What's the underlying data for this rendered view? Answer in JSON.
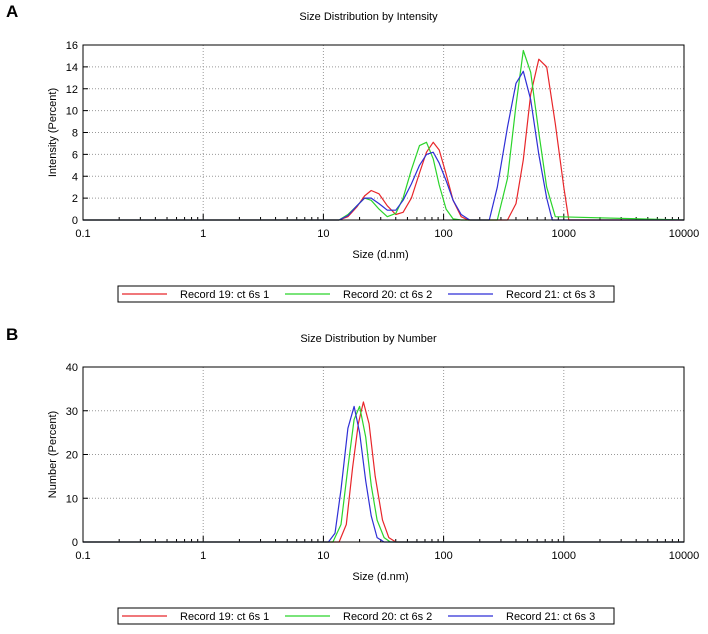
{
  "panels": [
    {
      "letter": "A",
      "chart_data": {
        "type": "line",
        "title": "Size Distribution by Intensity",
        "xlabel": "Size (d.nm)",
        "ylabel": "Intensity (Percent)",
        "xscale": "log",
        "xlim": [
          0.1,
          10000
        ],
        "ylim": [
          0,
          16
        ],
        "xticks": [
          0.1,
          1,
          10,
          100,
          1000,
          10000
        ],
        "xtick_labels": [
          "0.1",
          "1",
          "10",
          "100",
          "1000",
          "10000"
        ],
        "yticks": [
          0,
          2,
          4,
          6,
          8,
          10,
          12,
          14,
          16
        ],
        "ytick_labels": [
          "0",
          "2",
          "4",
          "6",
          "8",
          "10",
          "12",
          "14",
          "16"
        ],
        "grid": true,
        "legend_position": "bottom",
        "series": [
          {
            "name": "Record 19: ct 6s 1",
            "color": "#e8262a",
            "x": [
              0.1,
              13.5,
              16,
              19,
              22,
              25,
              29,
              34,
              40,
              46,
              54,
              63,
              72,
              82,
              92,
              105,
              120,
              140,
              160,
              340,
              400,
              460,
              530,
              620,
              720,
              850,
              1000,
              1100,
              10000
            ],
            "y": [
              0,
              0,
              0.3,
              1.2,
              2.2,
              2.7,
              2.4,
              1.3,
              0.5,
              0.7,
              2.0,
              4.3,
              6.2,
              7.1,
              6.4,
              4.2,
              1.8,
              0.3,
              0,
              0,
              1.5,
              5.5,
              11.5,
              14.7,
              14.0,
              8.8,
              3.0,
              0,
              0
            ]
          },
          {
            "name": "Record 20: ct 6s 2",
            "color": "#2bd42b",
            "x": [
              0.1,
              13.5,
              16,
              19,
              22,
              25,
              29,
              34,
              40,
              46,
              54,
              63,
              72,
              82,
              92,
              105,
              120,
              140,
              280,
              340,
              400,
              460,
              530,
              620,
              720,
              850,
              10000
            ],
            "y": [
              0,
              0,
              0.5,
              1.3,
              2.0,
              1.8,
              1.0,
              0.3,
              0.6,
              2.0,
              4.6,
              6.8,
              7.1,
              5.6,
              3.2,
              1.0,
              0.1,
              0,
              0,
              3.8,
              10.5,
              15.5,
              13.5,
              8.0,
              3.0,
              0.3,
              0
            ]
          },
          {
            "name": "Record 21: ct 6s 3",
            "color": "#2f2fd6",
            "x": [
              0.1,
              13.5,
              16,
              19,
              22,
              25,
              29,
              34,
              40,
              46,
              54,
              63,
              72,
              82,
              92,
              105,
              120,
              140,
              165,
              240,
              280,
              340,
              400,
              460,
              530,
              620,
              720,
              800,
              10000
            ],
            "y": [
              0,
              0,
              0.4,
              1.3,
              2.0,
              2.0,
              1.5,
              0.9,
              0.9,
              1.8,
              3.3,
              5.0,
              6.0,
              6.2,
              5.2,
              3.6,
              1.8,
              0.5,
              0,
              0,
              3.0,
              8.5,
              12.5,
              13.6,
              11.0,
              6.0,
              2.0,
              0,
              0
            ]
          }
        ]
      }
    },
    {
      "letter": "B",
      "chart_data": {
        "type": "line",
        "title": "Size Distribution by Number",
        "xlabel": "Size (d.nm)",
        "ylabel": "Number (Percent)",
        "xscale": "log",
        "xlim": [
          0.1,
          10000
        ],
        "ylim": [
          0,
          40
        ],
        "xticks": [
          0.1,
          1,
          10,
          100,
          1000,
          10000
        ],
        "xtick_labels": [
          "0.1",
          "1",
          "10",
          "100",
          "1000",
          "10000"
        ],
        "yticks": [
          0,
          10,
          20,
          30,
          40
        ],
        "ytick_labels": [
          "0",
          "10",
          "20",
          "30",
          "40"
        ],
        "grid": true,
        "legend_position": "bottom",
        "series": [
          {
            "name": "Record 19: ct 6s 1",
            "color": "#e8262a",
            "x": [
              0.1,
              13.5,
              15.5,
              17.5,
              19.5,
              21.5,
              24,
              27,
              31,
              35,
              40,
              10000
            ],
            "y": [
              0,
              0,
              4,
              17,
              27,
              32,
              27,
              15,
              5,
              1,
              0,
              0
            ]
          },
          {
            "name": "Record 20: ct 6s 2",
            "color": "#2bd42b",
            "x": [
              0.1,
              12,
              14,
              16,
              18,
              20,
              22.5,
              25,
              28,
              32,
              36,
              10000
            ],
            "y": [
              0,
              0,
              4,
              17,
              28,
              31,
              24,
              13,
              5,
              1,
              0,
              0
            ]
          },
          {
            "name": "Record 21: ct 6s 3",
            "color": "#2f2fd6",
            "x": [
              0.1,
              11,
              12.5,
              14,
              16,
              18,
              20,
              22.5,
              25,
              28,
              32,
              10000
            ],
            "y": [
              0,
              0,
              2,
              12,
              26,
              31,
              25,
              14,
              6,
              1,
              0,
              0
            ]
          }
        ]
      }
    }
  ]
}
